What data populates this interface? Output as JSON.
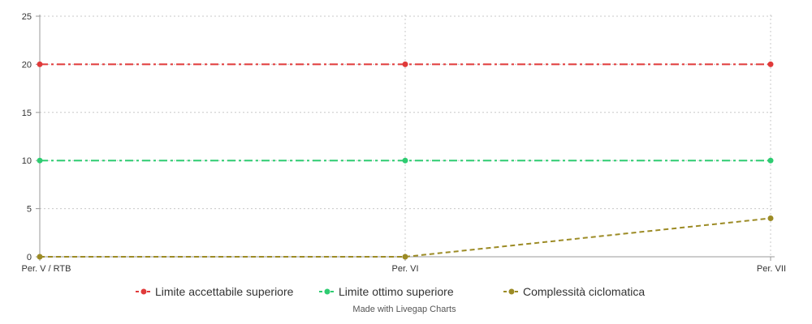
{
  "chart_data": {
    "type": "line",
    "categories": [
      "Per. V / RTB",
      "Per. VI",
      "Per. VII"
    ],
    "y_ticks": [
      0,
      5,
      10,
      15,
      20,
      25
    ],
    "ylim": [
      0,
      25
    ],
    "grid": true,
    "legend_position": "bottom",
    "series": [
      {
        "name": "Limite accettabile superiore",
        "values": [
          20,
          20,
          20
        ],
        "color": "#e03a3a",
        "dash": "dash-dot"
      },
      {
        "name": "Limite ottimo superiore",
        "values": [
          10,
          10,
          10
        ],
        "color": "#2ecc71",
        "dash": "dash-dot"
      },
      {
        "name": "Complessità ciclomatica",
        "values": [
          0,
          0,
          4
        ],
        "color": "#9c8b25",
        "dash": "dashed"
      }
    ]
  },
  "credit": "Made with Livegap Charts"
}
